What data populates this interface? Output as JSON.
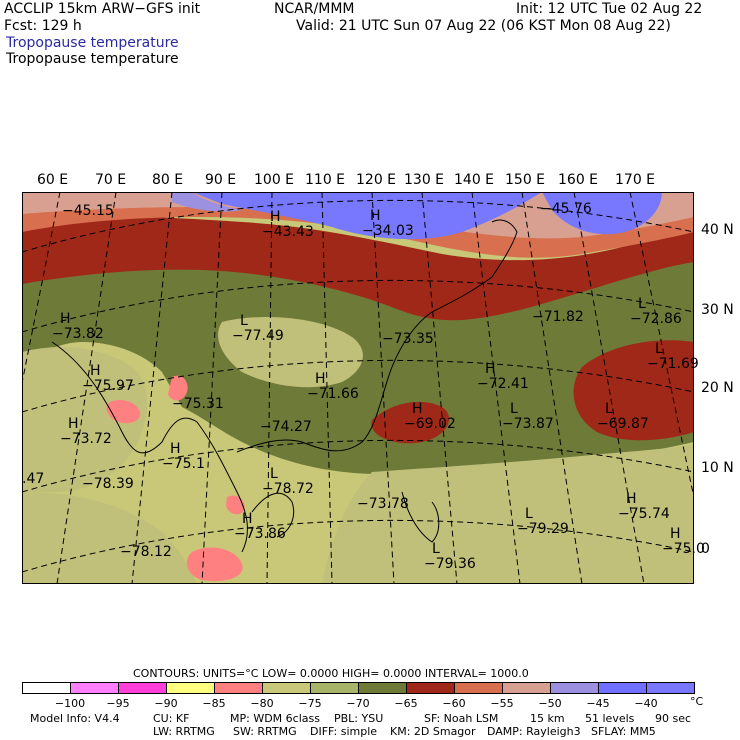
{
  "header": {
    "model": "ACCLIP 15km ARW−GFS init",
    "center": "NCAR/MMM",
    "init": "Init: 12 UTC Tue 02 Aug 22",
    "fcst": "Fcst:  129 h",
    "valid": "Valid: 21 UTC Sun 07 Aug 22 (06 KST Mon 08 Aug 22)",
    "field1": "Tropopause temperature",
    "field2": "Tropopause temperature"
  },
  "lon_labels": [
    "60 E",
    "70 E",
    "80 E",
    "90 E",
    "100 E",
    "110 E",
    "120 E",
    "130 E",
    "140 E",
    "150 E",
    "160 E",
    "170 E"
  ],
  "lat_labels": [
    "40 N",
    "30 N",
    "20 N",
    "10 N",
    "0"
  ],
  "annotations": [
    {
      "letter": "",
      "value": "−45.15"
    },
    {
      "letter": "H",
      "value": "−43.43"
    },
    {
      "letter": "H",
      "value": "−34.03"
    },
    {
      "letter": "",
      "value": "−45.76"
    },
    {
      "letter": "H",
      "value": "−73.82"
    },
    {
      "letter": "L",
      "value": "−77.49"
    },
    {
      "letter": "",
      "value": "−73.35"
    },
    {
      "letter": "",
      "value": "−71.82"
    },
    {
      "letter": "L",
      "value": "−72.86"
    },
    {
      "letter": "L",
      "value": "−71.69"
    },
    {
      "letter": "H",
      "value": "−75.97"
    },
    {
      "letter": "",
      "value": "−75.31"
    },
    {
      "letter": "H",
      "value": "−71.66"
    },
    {
      "letter": "H",
      "value": "−72.41"
    },
    {
      "letter": "H",
      "value": "−73.72"
    },
    {
      "letter": "",
      "value": "−74.27"
    },
    {
      "letter": "H",
      "value": "−69.02"
    },
    {
      "letter": "L",
      "value": "−73.87"
    },
    {
      "letter": "L",
      "value": "−69.87"
    },
    {
      "letter": "H",
      "value": "−75.1"
    },
    {
      "letter": "",
      "value": "−78.39"
    },
    {
      "letter": "L",
      "value": "−78.72"
    },
    {
      "letter": "",
      "value": "−73.78"
    },
    {
      "letter": "L",
      "value": "−79.29"
    },
    {
      "letter": "H",
      "value": "−75.74"
    },
    {
      "letter": "H",
      "value": "−73.86"
    },
    {
      "letter": "H",
      "value": "−75.0"
    },
    {
      "letter": "",
      "value": "−78.12"
    },
    {
      "letter": "L",
      "value": "−79.36"
    },
    {
      "letter": "",
      "value": ".47"
    }
  ],
  "contours_line": "CONTOURS:  UNITS=°C  LOW=  0.0000       HIGH=  0.0000       INTERVAL=   1000.0",
  "colorbar": {
    "colors": [
      "#ffffff",
      "#ff80ff",
      "#ff40d8",
      "#ffff80",
      "#ff8080",
      "#c8c878",
      "#a8b46a",
      "#6e7a38",
      "#a02818",
      "#d87050",
      "#d8a090",
      "#9c90e0",
      "#7070ff",
      "#7878ff"
    ],
    "labels": [
      "−100",
      "−95",
      "−90",
      "−85",
      "−80",
      "−75",
      "−70",
      "−65",
      "−60",
      "−55",
      "−50",
      "−45",
      "−40"
    ],
    "unit": "°C"
  },
  "footer": {
    "line1": [
      "Model Info: V4.4",
      "CU: KF",
      "MP: WDM 6class",
      "PBL: YSU",
      "SF: Noah LSM",
      "15 km",
      "51 levels",
      "90 sec"
    ],
    "line2": [
      "LW: RRTMG",
      "SW: RRTMG",
      "DIFF: simple",
      "KM: 2D Smagor",
      "DAMP: Rayleigh3",
      "SFLAY: MM5"
    ]
  }
}
